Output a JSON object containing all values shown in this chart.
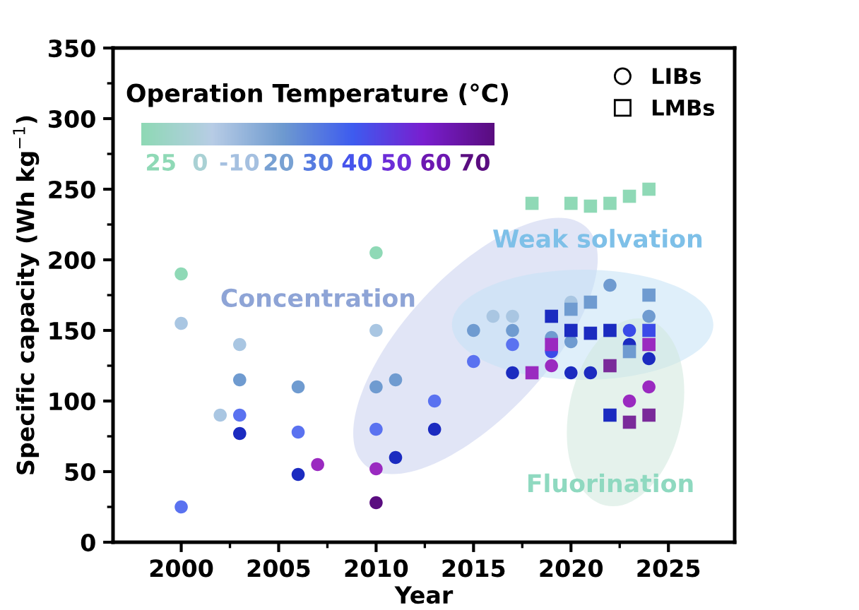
{
  "chart_data": {
    "type": "scatter",
    "xlabel": "Year",
    "ylabel": "Specific capacity (Wh kg$^{−1}$)",
    "xlim": [
      1996.5,
      2028.4
    ],
    "xticks": [
      2000,
      2005,
      2010,
      2015,
      2020,
      2025
    ],
    "ylim": [
      0,
      350
    ],
    "yticks": [
      0,
      50,
      100,
      150,
      200,
      250,
      300,
      350
    ],
    "grid": false,
    "legend": "top right",
    "legend_title": "Operation Temperature (°C)",
    "annotations": [
      "Concentration",
      "Weak solvation",
      "Fluorination",
      "25",
      "0",
      "-10",
      "20",
      "30",
      "40",
      "50",
      "60",
      "70"
    ],
    "series": [
      {
        "name": "LIBs",
        "marker": "circle",
        "x": [
          2000,
          2000,
          2000,
          2002,
          2003,
          2003,
          2003,
          2003,
          2006,
          2006,
          2006,
          2007,
          2010,
          2010,
          2010,
          2010,
          2010,
          2010,
          2011,
          2011,
          2013,
          2013,
          2015,
          2015,
          2016,
          2017,
          2017,
          2017,
          2017,
          2019,
          2019,
          2019,
          2020,
          2020,
          2020,
          2021,
          2022,
          2023,
          2023,
          2023,
          2024,
          2024,
          2024
        ],
        "values": [
          190,
          155,
          25,
          90,
          140,
          115,
          90,
          77,
          110,
          78,
          48,
          55,
          205,
          150,
          110,
          80,
          52,
          28,
          115,
          60,
          100,
          80,
          150,
          128,
          160,
          160,
          150,
          140,
          120,
          145,
          135,
          125,
          170,
          142,
          120,
          120,
          182,
          150,
          140,
          100,
          160,
          130,
          110
        ],
        "colors": [
          "#8fd9b6",
          "#a9c6e2",
          "#5a72f0",
          "#a9c6e2",
          "#a9c6e2",
          "#6f9bd0",
          "#5a72f0",
          "#1b2bc0",
          "#6f9bd0",
          "#5a72f0",
          "#1b2bc0",
          "#9a2ac0",
          "#8fd9b6",
          "#a9c6e2",
          "#6f9bd0",
          "#5a72f0",
          "#9a2ac0",
          "#5a0d80",
          "#6f9bd0",
          "#1b2bc0",
          "#5a72f0",
          "#1b2bc0",
          "#6f9bd0",
          "#5a72f0",
          "#a9c6e2",
          "#a9c6e2",
          "#6f9bd0",
          "#5a72f0",
          "#1b2bc0",
          "#6f9bd0",
          "#3a4ae8",
          "#9a2ac0",
          "#a9c6e2",
          "#6f9bd0",
          "#1b2bc0",
          "#1b2bc0",
          "#6f9bd0",
          "#3a4ae8",
          "#1b2bc0",
          "#9a2ac0",
          "#6f9bd0",
          "#1b2bc0",
          "#9a2ac0"
        ]
      },
      {
        "name": "LMBs",
        "marker": "square",
        "x": [
          2018,
          2018,
          2019,
          2019,
          2020,
          2020,
          2020,
          2021,
          2021,
          2021,
          2022,
          2022,
          2022,
          2022,
          2023,
          2023,
          2023,
          2024,
          2024,
          2024,
          2024,
          2024
        ],
        "values": [
          240,
          120,
          160,
          140,
          240,
          165,
          150,
          238,
          170,
          148,
          240,
          150,
          125,
          90,
          245,
          135,
          85,
          250,
          175,
          150,
          140,
          90
        ],
        "colors": [
          "#8fd9b6",
          "#9a2ac0",
          "#1b2bc0",
          "#9a2ac0",
          "#8fd9b6",
          "#6f9bd0",
          "#1b2bc0",
          "#8fd9b6",
          "#6f9bd0",
          "#1b2bc0",
          "#8fd9b6",
          "#1b2bc0",
          "#7a2a9a",
          "#1b2bc0",
          "#8fd9b6",
          "#6f9bd0",
          "#7a2a9a",
          "#8fd9b6",
          "#6f9bd0",
          "#3a4ae8",
          "#9a2ac0",
          "#7a2a9a"
        ]
      }
    ]
  }
}
